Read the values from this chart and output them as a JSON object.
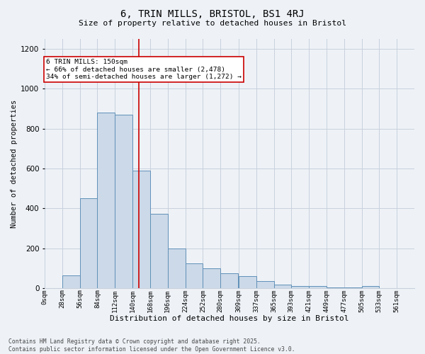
{
  "title1": "6, TRIN MILLS, BRISTOL, BS1 4RJ",
  "title2": "Size of property relative to detached houses in Bristol",
  "xlabel": "Distribution of detached houses by size in Bristol",
  "ylabel": "Number of detached properties",
  "bar_color": "#ccd9e8",
  "bar_edge_color": "#6090b8",
  "categories": [
    "0sqm",
    "28sqm",
    "56sqm",
    "84sqm",
    "112sqm",
    "140sqm",
    "168sqm",
    "196sqm",
    "224sqm",
    "252sqm",
    "280sqm",
    "309sqm",
    "337sqm",
    "365sqm",
    "393sqm",
    "421sqm",
    "449sqm",
    "477sqm",
    "505sqm",
    "533sqm",
    "561sqm"
  ],
  "bin_edges": [
    0,
    28,
    56,
    84,
    112,
    140,
    168,
    196,
    224,
    252,
    280,
    309,
    337,
    365,
    393,
    421,
    449,
    477,
    505,
    533,
    561
  ],
  "values": [
    0,
    65,
    450,
    880,
    870,
    590,
    375,
    200,
    125,
    100,
    75,
    60,
    35,
    20,
    10,
    10,
    5,
    5,
    10,
    0,
    0
  ],
  "vline_x": 150,
  "vline_color": "#cc0000",
  "annotation_text": "6 TRIN MILLS: 150sqm\n← 66% of detached houses are smaller (2,478)\n34% of semi-detached houses are larger (1,272) →",
  "annotation_box_facecolor": "#ffffff",
  "annotation_box_edgecolor": "#cc0000",
  "ylim": [
    0,
    1250
  ],
  "yticks": [
    0,
    200,
    400,
    600,
    800,
    1000,
    1200
  ],
  "footnote": "Contains HM Land Registry data © Crown copyright and database right 2025.\nContains public sector information licensed under the Open Government Licence v3.0.",
  "bg_color": "#eef2f7",
  "grid_color": "#c8d0dc"
}
